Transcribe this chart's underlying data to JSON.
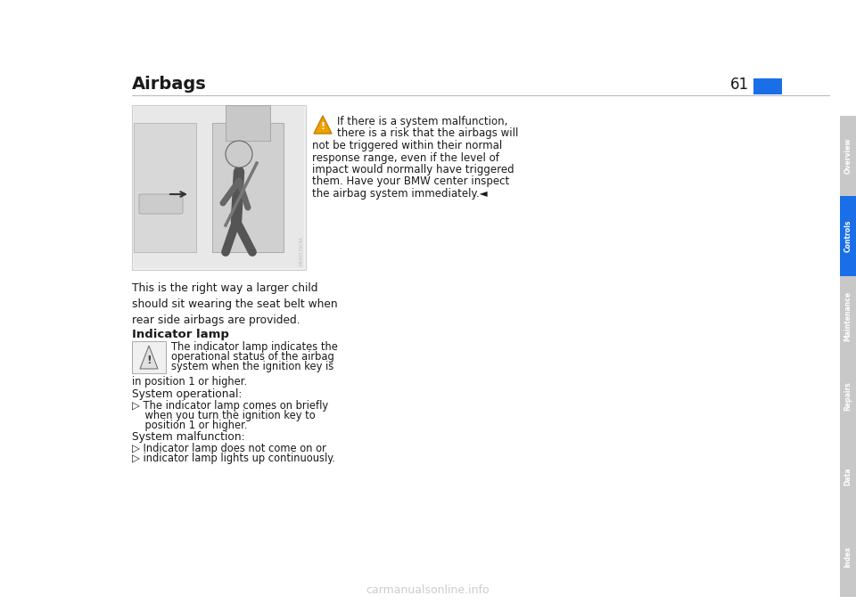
{
  "title": "Airbags",
  "page_number": "61",
  "background_color": "#ffffff",
  "title_color": "#1a1a1a",
  "page_num_color": "#1a1a1a",
  "blue_color": "#1a6fe8",
  "text_color": "#1a1a1a",
  "sidebar_tabs": [
    "Overview",
    "Controls",
    "Maintenance",
    "Repairs",
    "Data",
    "Index"
  ],
  "sidebar_active": "Controls",
  "sidebar_gray": "#c8c8c8",
  "caption_text": "This is the right way a larger child\nshould sit wearing the seat belt when\nrear side airbags are provided.",
  "indicator_heading": "Indicator lamp",
  "indicator_body_line1": "The indicator lamp indicates the",
  "indicator_body_line2": "operational status of the airbag",
  "indicator_body_line3": "system when the ignition key is",
  "indicator_body_line4": "in position 1 or higher.",
  "system_operational_label": "System operational:",
  "op_bullet": "▷ The indicator lamp comes on briefly",
  "op_bullet2": "    when you turn the ignition key to",
  "op_bullet3": "    position 1 or higher.",
  "system_malfunction_label": "System malfunction:",
  "mal_bullet1": "▷ Indicator lamp does not come on or",
  "mal_bullet2": "▷ indicator lamp lights up continuously.",
  "warning_line1": "If there is a system malfunction,",
  "warning_line2": "there is a risk that the airbags will",
  "warning_line3": "not be triggered within their normal",
  "warning_line4": "response range, even if the level of",
  "warning_line5": "impact would normally have triggered",
  "warning_line6": "them. Have your BMW center inspect",
  "warning_line7": "the airbag system immediately.◄",
  "watermark": "carmanualsonline.info"
}
